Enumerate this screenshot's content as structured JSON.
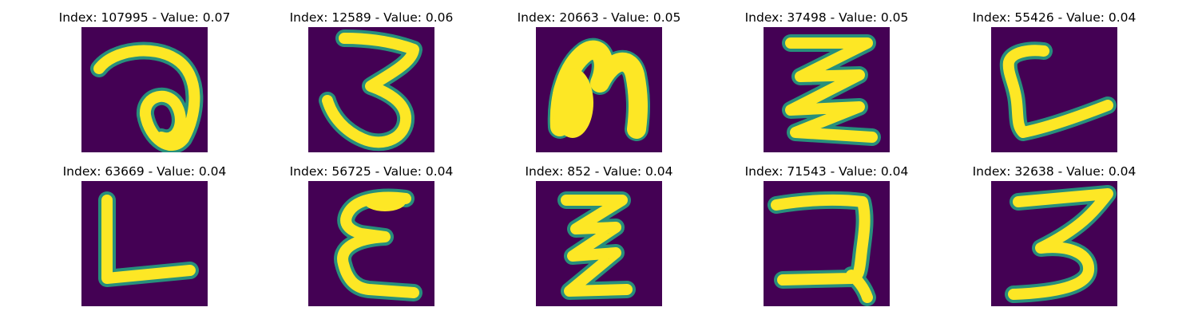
{
  "colors": {
    "background": "#440154",
    "stroke": "#fde725",
    "edge": "#22a884"
  },
  "panels": [
    {
      "title": "Index: 107995 - Value: 0.07"
    },
    {
      "title": "Index: 12589 - Value: 0.06"
    },
    {
      "title": "Index: 20663 - Value: 0.05"
    },
    {
      "title": "Index: 37498 - Value: 0.05"
    },
    {
      "title": "Index: 55426 - Value: 0.04"
    },
    {
      "title": "Index: 63669 - Value: 0.04"
    },
    {
      "title": "Index: 56725 - Value: 0.04"
    },
    {
      "title": "Index: 852 - Value: 0.04"
    },
    {
      "title": "Index: 71543 - Value: 0.04"
    },
    {
      "title": "Index: 32638 - Value: 0.04"
    }
  ]
}
